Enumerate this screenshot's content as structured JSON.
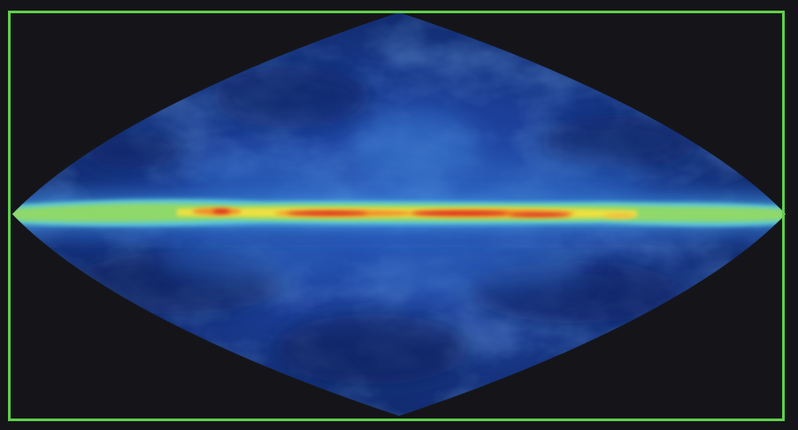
{
  "image": {
    "subject": "all-sky-map",
    "projection": "sinusoidal"
  },
  "colors": {
    "background": "#151519",
    "frame": "#5fcf4a",
    "sky_dark": "#0d1d5a",
    "sky_mid": "#1f4fb0",
    "sky_light": "#3f86d6",
    "band_cyan": "#5cc7d8",
    "band_green": "#8fd86a",
    "band_yellow": "#f0e040",
    "band_orange": "#f08a2a",
    "band_red": "#d82a1a"
  }
}
